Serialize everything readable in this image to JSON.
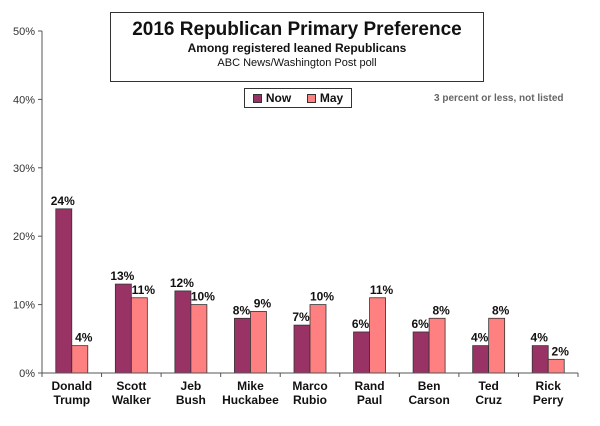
{
  "chart_data": {
    "type": "bar",
    "title": "2016 Republican Primary Preference",
    "subtitle": "Among registered leaned Republicans",
    "source": "ABC News/Washington  Post poll",
    "note": "3 percent or less, not listed",
    "categories": [
      [
        "Donald",
        "Trump"
      ],
      [
        "Scott",
        "Walker"
      ],
      [
        "Jeb",
        "Bush"
      ],
      [
        "Mike",
        "Huckabee"
      ],
      [
        "Marco",
        "Rubio"
      ],
      [
        "Rand",
        "Paul"
      ],
      [
        "Ben",
        "Carson"
      ],
      [
        "Ted",
        "Cruz"
      ],
      [
        "Rick",
        "Perry"
      ]
    ],
    "series": [
      {
        "name": "Now",
        "color": "#993366",
        "values": [
          24,
          13,
          12,
          8,
          7,
          6,
          6,
          4,
          4
        ]
      },
      {
        "name": "May",
        "color": "#ff8080",
        "values": [
          4,
          11,
          10,
          9,
          10,
          11,
          8,
          8,
          2
        ]
      }
    ],
    "ylim": [
      0,
      50
    ],
    "yticks": [
      0,
      10,
      20,
      30,
      40,
      50
    ],
    "ytick_labels": [
      "0%",
      "10%",
      "20%",
      "30%",
      "40%",
      "50%"
    ],
    "value_suffix": "%",
    "grid": false,
    "legend_position": "top-center"
  }
}
